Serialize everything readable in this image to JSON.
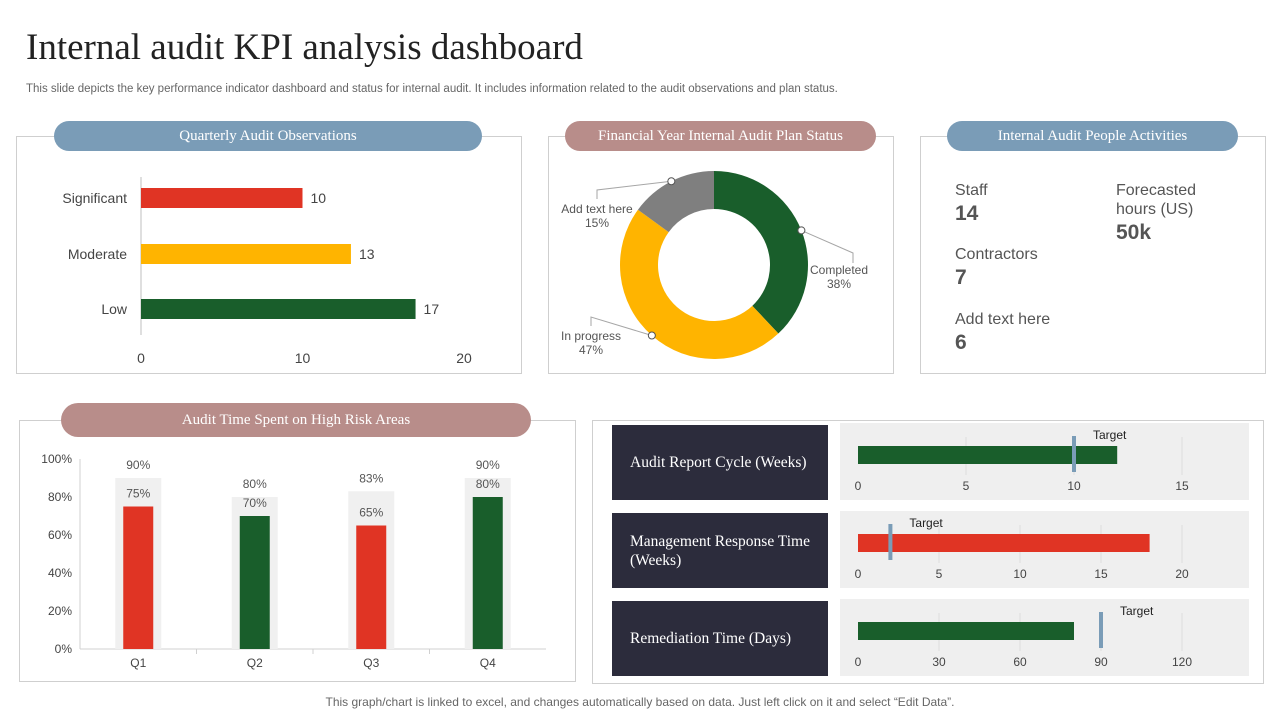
{
  "header": {
    "title": "Internal audit KPI analysis dashboard",
    "subtitle": "This slide depicts the key performance indicator dashboard and status for internal audit. It includes information related to the audit observations and plan status."
  },
  "footer": "This graph/chart is linked to excel,  and changes automatically based on data. Just left click on it and select “Edit Data”.",
  "colors": {
    "red": "#e03424",
    "amber": "#ffb400",
    "green": "#195e2b",
    "grey": "#7f7f7f",
    "navy": "#2c2c3c",
    "target": "#7a9cb7"
  },
  "people": {
    "title": "Internal Audit People Activities",
    "items": [
      {
        "label": "Staff",
        "value": "14"
      },
      {
        "label": "Contractors",
        "value": "7"
      },
      {
        "label": "Add text here",
        "value": "6"
      },
      {
        "label": "Forecasted hours (US)",
        "value": "50k"
      }
    ]
  },
  "chart_data": [
    {
      "type": "bar",
      "title": "Quarterly Audit Observations",
      "orientation": "horizontal",
      "categories": [
        "Significant",
        "Moderate",
        "Low"
      ],
      "values": [
        10,
        13,
        17
      ],
      "colors": [
        "#e03424",
        "#ffb400",
        "#195e2b"
      ],
      "xlim": [
        0,
        20
      ],
      "xticks": [
        0,
        10,
        20
      ]
    },
    {
      "type": "pie",
      "title": "Financial Year Internal Audit Plan Status",
      "donut": true,
      "slices": [
        {
          "label": "Completed",
          "value": 38,
          "text": "38%",
          "color": "#195e2b"
        },
        {
          "label": "In progress",
          "value": 47,
          "text": "47%",
          "color": "#ffb400"
        },
        {
          "label": "Add text here",
          "value": 15,
          "text": "15%",
          "color": "#7f7f7f"
        }
      ]
    },
    {
      "type": "bar",
      "title": "Audit Time Spent on High Risk Areas",
      "categories": [
        "Q1",
        "Q2",
        "Q3",
        "Q4"
      ],
      "series": [
        {
          "values": [
            90,
            80,
            83,
            90
          ],
          "labels": [
            "90%",
            "80%",
            "83%",
            "90%"
          ],
          "color": "#f0f0f0"
        },
        {
          "values": [
            75,
            70,
            65,
            80
          ],
          "labels": [
            "75%",
            "70%",
            "65%",
            "80%"
          ],
          "colors": [
            "#e03424",
            "#195e2b",
            "#e03424",
            "#195e2b"
          ]
        }
      ],
      "ylim": [
        0,
        100
      ],
      "yticks": [
        "0%",
        "20%",
        "40%",
        "60%",
        "80%",
        "100%"
      ]
    },
    {
      "type": "bar",
      "title": "Audit Report Cycle (Weeks)",
      "orientation": "horizontal",
      "value": 12,
      "target": 10,
      "target_label": "Target",
      "color": "#195e2b",
      "xlim": [
        0,
        15
      ],
      "xticks": [
        0,
        5,
        10,
        15
      ]
    },
    {
      "type": "bar",
      "title": "Management Response Time (Weeks)",
      "orientation": "horizontal",
      "value": 18,
      "target": 2,
      "target_label": "Target",
      "color": "#e03424",
      "xlim": [
        0,
        20
      ],
      "xticks": [
        0,
        5,
        10,
        15,
        20
      ]
    },
    {
      "type": "bar",
      "title": "Remediation Time (Days)",
      "orientation": "horizontal",
      "value": 80,
      "target": 90,
      "target_label": "Target",
      "color": "#195e2b",
      "xlim": [
        0,
        120
      ],
      "xticks": [
        0,
        30,
        60,
        90,
        120
      ]
    }
  ]
}
